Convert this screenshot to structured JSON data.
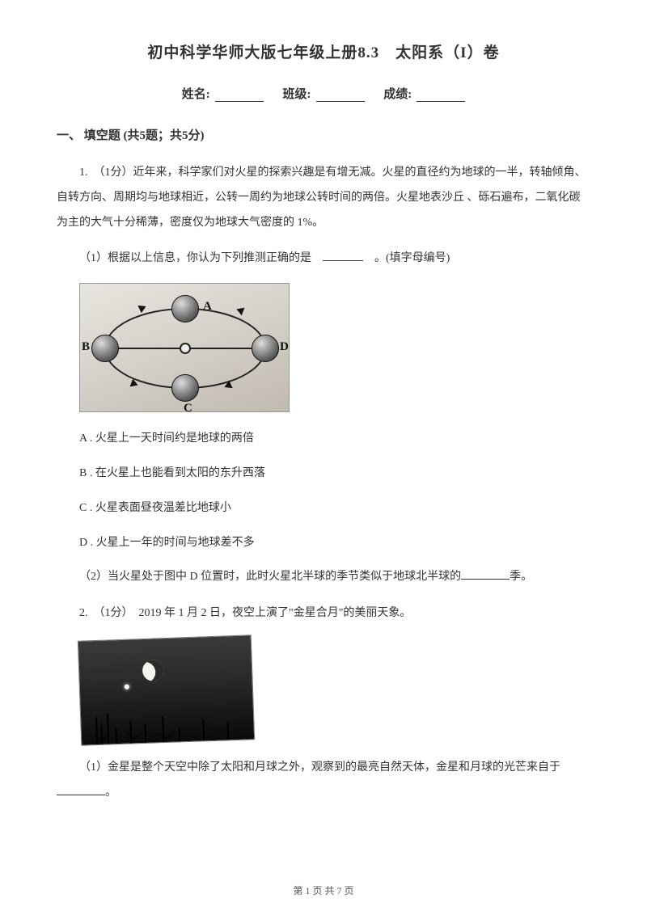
{
  "title": "初中科学华师大版七年级上册8.3　太阳系（I）卷",
  "header": {
    "name_label": "姓名:",
    "class_label": "班级:",
    "score_label": "成绩:"
  },
  "section1": {
    "heading": "一、 填空题 (共5题；共5分)",
    "q1": {
      "stem": "1.　（1分）近年来，科学家们对火星的探索兴趣是有增无减。火星的直径约为地球的一半，转轴倾角、自转方向、周期均与地球相近，公转一周约为地球公转时间的两倍。火星地表沙丘 、砾石遍布，二氧化碳为主的大气十分稀薄，密度仅为地球大气密度的 1%。",
      "sub1_pre": "（1）根据以上信息，你认为下列推测正确的是　",
      "sub1_post": "　。(填字母编号)",
      "optA": "A . 火星上一天时间约是地球的两倍",
      "optB": "B . 在火星上也能看到太阳的东升西落",
      "optC": "C . 火星表面昼夜温差比地球小",
      "optD": "D . 火星上一年的时间与地球差不多",
      "sub2_pre": "（2）当火星处于图中 D 位置时，此时火星北半球的季节类似于地球北半球的",
      "sub2_post": "季。",
      "fig_labels": {
        "A": "A",
        "B": "B",
        "C": "C",
        "D": "D"
      }
    },
    "q2": {
      "stem": "2.　（1分）　2019 年 1 月 2 日，夜空上演了\"金星合月\"的美丽天象。",
      "sub1_pre": "（1）金星是整个天空中除了太阳和月球之外，观察到的最亮自然天体，金星和月球的光芒来自于",
      "sub1_post": "。"
    }
  },
  "footer": "第 1 页 共 7 页"
}
